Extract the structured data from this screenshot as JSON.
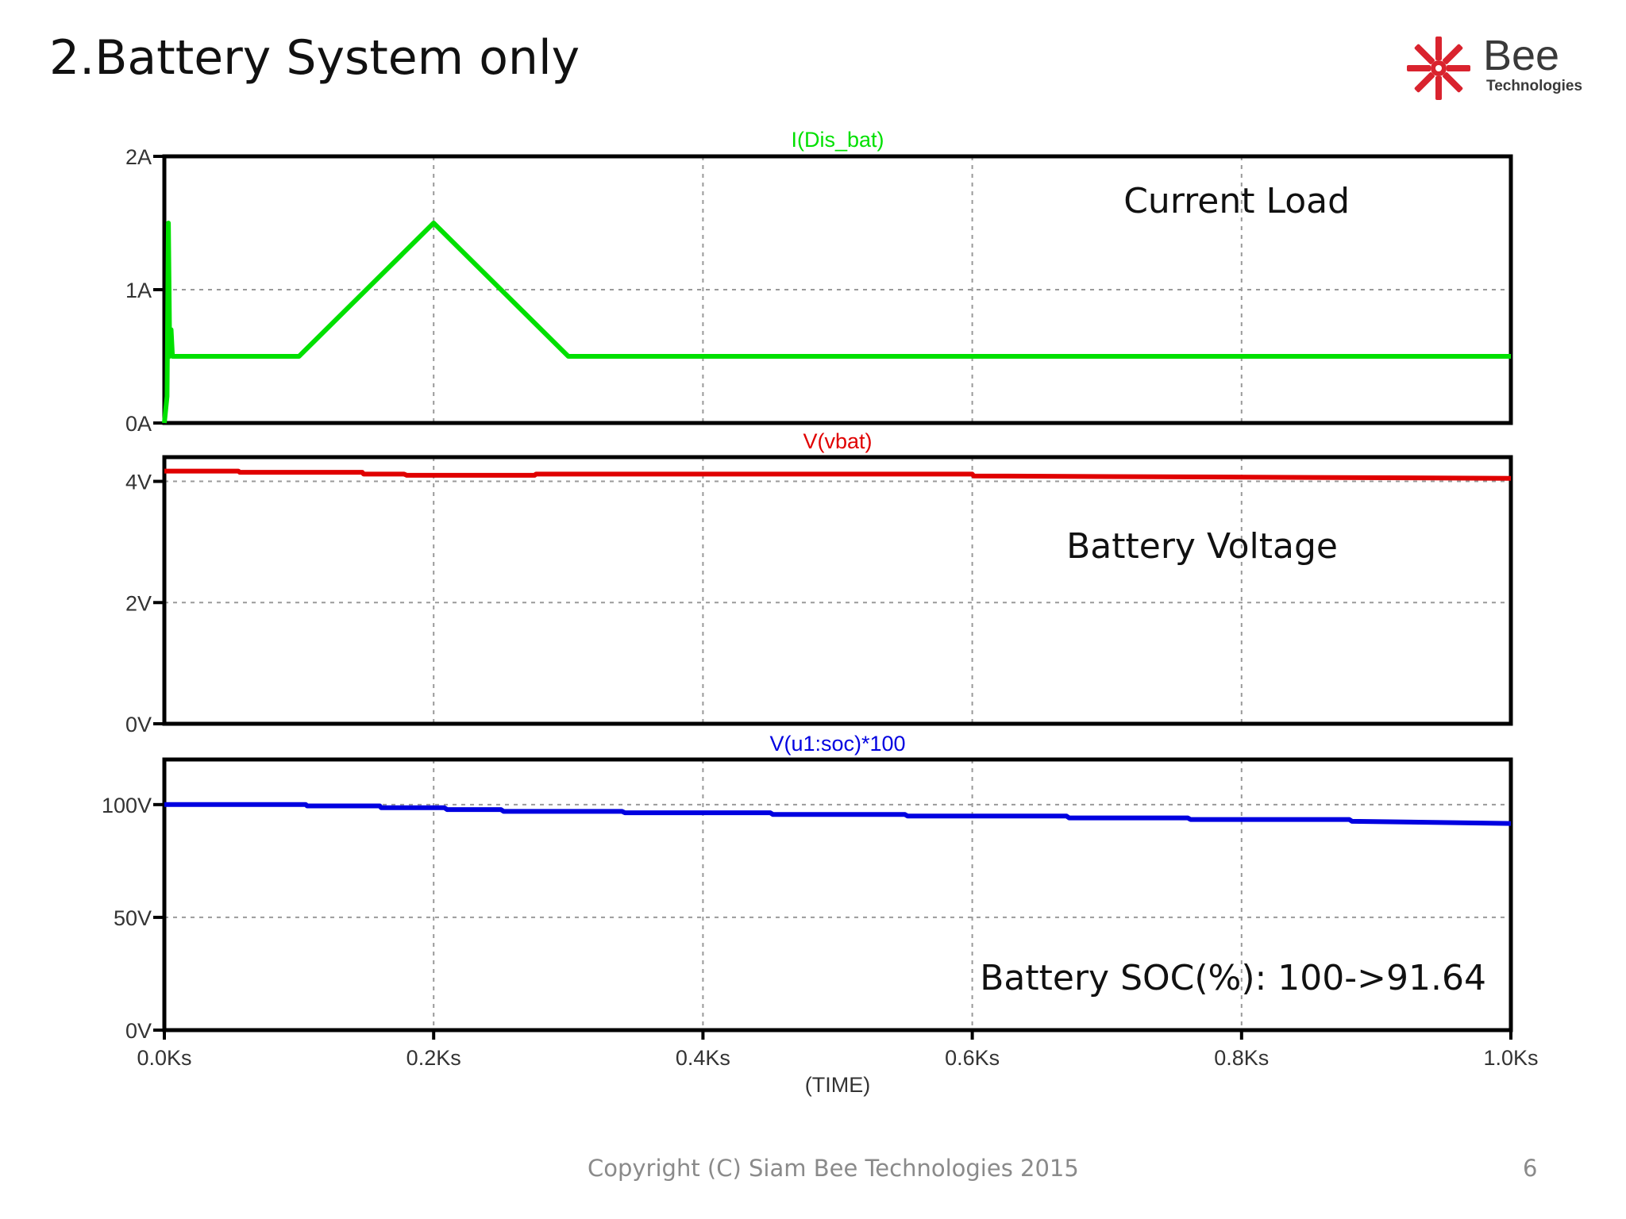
{
  "slide": {
    "title": "2.Battery System only",
    "footer": "Copyright (C) Siam Bee Technologies 2015",
    "page_number": "6"
  },
  "logo": {
    "name": "Bee",
    "subtitle": "Technologies",
    "icon": "bee-logo-icon",
    "colors": {
      "star": "#d9232e",
      "text": "#3a3a3a"
    }
  },
  "chart_data": [
    {
      "type": "line",
      "title": "I(Dis_bat)",
      "annotation": "Current Load",
      "color": "#00e000",
      "xlabel": "",
      "xlim": [
        0,
        1.0
      ],
      "ylim": [
        0,
        2
      ],
      "yticks": [
        0,
        1,
        2
      ],
      "yticklabels": [
        "0A",
        "1A",
        "2A"
      ],
      "grid": true,
      "series": [
        {
          "x": [
            0,
            0.002,
            0.003,
            0.004,
            0.005,
            0.006,
            0.1,
            0.2,
            0.3,
            1.0
          ],
          "y": [
            0,
            0.2,
            1.5,
            0.5,
            0.7,
            0.5,
            0.5,
            1.5,
            0.5,
            0.5
          ]
        }
      ]
    },
    {
      "type": "line",
      "title": "V(vbat)",
      "annotation": "Battery Voltage",
      "color": "#e00000",
      "xlabel": "",
      "xlim": [
        0,
        1.0
      ],
      "ylim": [
        0,
        4.4
      ],
      "yticks": [
        0,
        2,
        4
      ],
      "yticklabels": [
        "0V",
        "2V",
        "4V"
      ],
      "grid": true,
      "series": [
        {
          "x": [
            0,
            0.055,
            0.056,
            0.147,
            0.148,
            0.178,
            0.18,
            0.275,
            0.276,
            0.6,
            0.601,
            1.0
          ],
          "y": [
            4.17,
            4.17,
            4.15,
            4.15,
            4.12,
            4.12,
            4.1,
            4.1,
            4.12,
            4.12,
            4.09,
            4.05
          ]
        }
      ]
    },
    {
      "type": "line",
      "title": "V(u1:soc)*100",
      "annotation": "Battery SOC(%): 100->91.64",
      "color": "#0000e0",
      "xlabel": "(TIME)",
      "xlim": [
        0,
        1.0
      ],
      "ylim": [
        0,
        120
      ],
      "yticks": [
        0,
        50,
        100
      ],
      "yticklabels": [
        "0V",
        "50V",
        "100V"
      ],
      "xticks": [
        0,
        0.2,
        0.4,
        0.6,
        0.8,
        1.0
      ],
      "xticklabels": [
        "0.0Ks",
        "0.2Ks",
        "0.4Ks",
        "0.6Ks",
        "0.8Ks",
        "1.0Ks"
      ],
      "grid": true,
      "series": [
        {
          "x": [
            0,
            0.105,
            0.106,
            0.16,
            0.161,
            0.208,
            0.21,
            0.25,
            0.252,
            0.34,
            0.342,
            0.45,
            0.452,
            0.55,
            0.552,
            0.67,
            0.672,
            0.76,
            0.762,
            0.88,
            0.882,
            1.0
          ],
          "y": [
            100,
            100,
            99.4,
            99.4,
            98.6,
            98.6,
            97.8,
            97.8,
            97,
            97,
            96.4,
            96.4,
            95.6,
            95.6,
            94.9,
            94.9,
            94.1,
            94.1,
            93.4,
            93.4,
            92.6,
            91.64
          ]
        }
      ]
    }
  ]
}
